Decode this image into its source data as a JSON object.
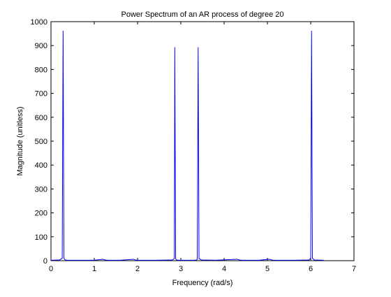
{
  "chart_data": {
    "type": "line",
    "title": "Power Spectrum of an AR process of degree 20",
    "xlabel": "Frequency (rad/s)",
    "ylabel": "Magnitude (unitless)",
    "xlim": [
      0,
      7
    ],
    "ylim": [
      0,
      1000
    ],
    "xticks": [
      0,
      1,
      2,
      3,
      4,
      5,
      6,
      7
    ],
    "yticks": [
      0,
      100,
      200,
      300,
      400,
      500,
      600,
      700,
      800,
      900,
      1000
    ],
    "grid": false,
    "legend": "none",
    "line_color": "#0000ff",
    "series": [
      {
        "x": [
          0,
          0.2,
          0.26,
          0.28,
          0.3,
          0.32,
          0.36,
          0.6,
          1.0,
          1.2,
          1.25,
          1.3,
          1.6,
          1.9,
          1.95,
          2.0,
          2.4,
          2.8,
          2.85,
          2.86,
          2.88,
          2.9,
          2.95,
          3.1,
          3.3,
          3.37,
          3.38,
          3.4,
          3.42,
          3.48,
          3.8,
          4.3,
          4.35,
          4.4,
          4.8,
          5.05,
          5.1,
          5.15,
          5.6,
          5.96,
          6.0,
          6.02,
          6.04,
          6.08,
          6.3
        ],
        "y": [
          2,
          3,
          10,
          962,
          10,
          4,
          2,
          2,
          2,
          6,
          3,
          2,
          2,
          6,
          3,
          2,
          2,
          3,
          8,
          893,
          8,
          3,
          2,
          2,
          2,
          3,
          8,
          893,
          8,
          3,
          2,
          6,
          3,
          2,
          2,
          6,
          3,
          2,
          2,
          3,
          10,
          962,
          10,
          3,
          2
        ]
      }
    ]
  }
}
